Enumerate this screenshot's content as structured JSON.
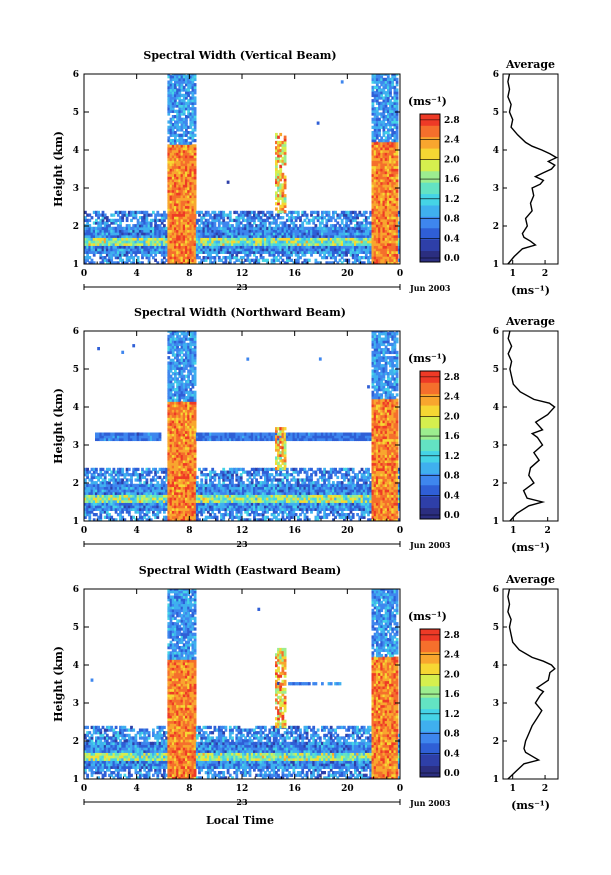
{
  "chart_data": [
    {
      "type": "heatmap",
      "title": "Spectral Width (Vertical Beam)",
      "ylabel": "Height (km)",
      "ylim": [
        1,
        6
      ],
      "yticks": [
        "1",
        "2",
        "3",
        "4",
        "5",
        "6"
      ],
      "xlim": [
        0,
        24
      ],
      "xticks": [
        "0",
        "4",
        "8",
        "12",
        "16",
        "20",
        "0"
      ],
      "date_day": "23",
      "date_label": "Jun 2003",
      "colorbar": {
        "unit": "(ms⁻¹)",
        "ticks": [
          "0.0",
          "0.4",
          "0.8",
          "1.2",
          "1.6",
          "2.0",
          "2.4",
          "2.8"
        ],
        "range": [
          0.0,
          3.0
        ]
      },
      "profile": {
        "title": "Average",
        "xticks": [
          "1",
          "2"
        ],
        "xlim": [
          0.7,
          2.4
        ],
        "xlabel": "(ms⁻¹)",
        "ylim": [
          1,
          6
        ],
        "yticks": [
          "1",
          "2",
          "3",
          "4",
          "5",
          "6"
        ],
        "heights": [
          1.0,
          1.2,
          1.4,
          1.5,
          1.6,
          1.7,
          1.8,
          2.0,
          2.2,
          2.4,
          2.6,
          2.8,
          3.0,
          3.1,
          3.2,
          3.3,
          3.4,
          3.5,
          3.6,
          3.7,
          3.8,
          3.9,
          4.0,
          4.1,
          4.2,
          4.4,
          4.6,
          4.8,
          5.0,
          5.2,
          5.4,
          5.6,
          5.8,
          6.0
        ],
        "values": [
          0.85,
          1.05,
          1.3,
          1.7,
          1.55,
          1.35,
          1.3,
          1.45,
          1.4,
          1.6,
          1.55,
          1.65,
          1.6,
          1.85,
          1.95,
          1.7,
          1.95,
          2.2,
          2.3,
          2.1,
          2.35,
          2.15,
          1.9,
          1.6,
          1.4,
          1.15,
          0.95,
          1.0,
          0.9,
          0.95,
          0.85,
          0.9,
          0.85,
          0.9
        ]
      }
    },
    {
      "type": "heatmap",
      "title": "Spectral Width (Northward Beam)",
      "ylabel": "Height (km)",
      "ylim": [
        1,
        6
      ],
      "yticks": [
        "1",
        "2",
        "3",
        "4",
        "5",
        "6"
      ],
      "xlim": [
        0,
        24
      ],
      "xticks": [
        "0",
        "4",
        "8",
        "12",
        "16",
        "20",
        "0"
      ],
      "date_day": "23",
      "date_label": "Jun 2003",
      "colorbar": {
        "unit": "(ms⁻¹)",
        "ticks": [
          "0.0",
          "0.4",
          "0.8",
          "1.2",
          "1.6",
          "2.0",
          "2.4",
          "2.8"
        ],
        "range": [
          0.0,
          3.0
        ]
      },
      "profile": {
        "title": "Average",
        "xticks": [
          "1",
          "2"
        ],
        "xlim": [
          0.7,
          2.3
        ],
        "xlabel": "(ms⁻¹)",
        "ylim": [
          1,
          6
        ],
        "yticks": [
          "1",
          "2",
          "3",
          "4",
          "5",
          "6"
        ],
        "heights": [
          1.0,
          1.2,
          1.4,
          1.5,
          1.6,
          1.8,
          2.0,
          2.2,
          2.4,
          2.6,
          2.8,
          3.0,
          3.2,
          3.3,
          3.4,
          3.6,
          3.8,
          3.9,
          4.0,
          4.1,
          4.2,
          4.4,
          4.6,
          4.8,
          5.0,
          5.2,
          5.4,
          5.6,
          5.8,
          6.0
        ],
        "values": [
          0.9,
          1.1,
          1.45,
          1.85,
          1.4,
          1.3,
          1.6,
          1.45,
          1.5,
          1.75,
          1.6,
          1.85,
          1.7,
          1.55,
          1.85,
          1.65,
          2.0,
          2.1,
          2.2,
          2.05,
          1.6,
          1.2,
          1.0,
          0.95,
          0.9,
          0.95,
          0.85,
          0.95,
          0.85,
          0.9
        ]
      }
    },
    {
      "type": "heatmap",
      "title": "Spectral Width (Eastward Beam)",
      "ylabel": "Height (km)",
      "xlabel": "Local Time",
      "ylim": [
        1,
        6
      ],
      "yticks": [
        "1",
        "2",
        "3",
        "4",
        "5",
        "6"
      ],
      "xlim": [
        0,
        24
      ],
      "xticks": [
        "0",
        "4",
        "8",
        "12",
        "16",
        "20",
        "0"
      ],
      "date_day": "23",
      "date_label": "Jun 2003",
      "colorbar": {
        "unit": "(ms⁻¹)",
        "ticks": [
          "0.0",
          "0.4",
          "0.8",
          "1.2",
          "1.6",
          "2.0",
          "2.4",
          "2.8"
        ],
        "range": [
          0.0,
          3.0
        ]
      },
      "profile": {
        "title": "Average",
        "xticks": [
          "1",
          "2"
        ],
        "xlim": [
          0.7,
          2.4
        ],
        "xlabel": "(ms⁻¹)",
        "ylim": [
          1,
          6
        ],
        "yticks": [
          "1",
          "2",
          "3",
          "4",
          "5",
          "6"
        ],
        "heights": [
          1.0,
          1.2,
          1.4,
          1.5,
          1.6,
          1.7,
          1.8,
          2.0,
          2.2,
          2.4,
          2.6,
          2.8,
          3.0,
          3.2,
          3.3,
          3.4,
          3.6,
          3.8,
          3.9,
          4.0,
          4.1,
          4.2,
          4.4,
          4.6,
          4.8,
          5.0,
          5.2,
          5.4,
          5.6,
          5.8,
          6.0
        ],
        "values": [
          0.85,
          1.1,
          1.35,
          1.8,
          1.6,
          1.4,
          1.35,
          1.4,
          1.5,
          1.6,
          1.75,
          1.9,
          1.7,
          1.85,
          1.95,
          1.75,
          2.1,
          2.15,
          2.3,
          2.2,
          1.95,
          1.6,
          1.2,
          1.0,
          0.95,
          0.9,
          0.95,
          0.85,
          0.9,
          0.85,
          0.9
        ]
      }
    }
  ]
}
